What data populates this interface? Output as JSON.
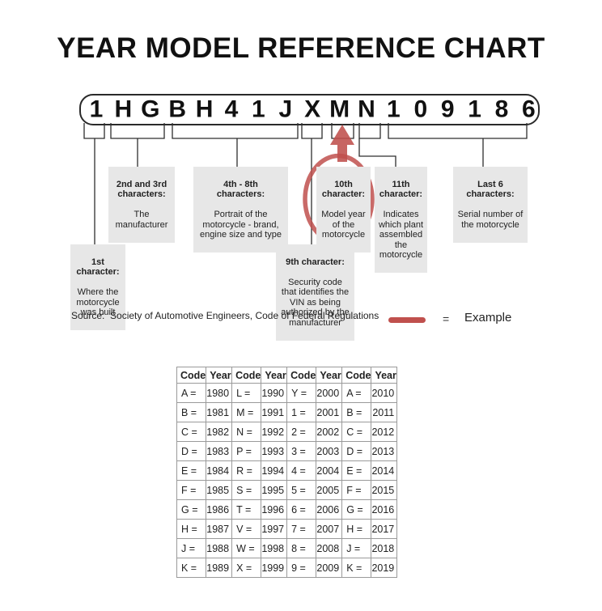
{
  "title": "YEAR MODEL REFERENCE CHART",
  "vin": {
    "chars": [
      "1",
      "H",
      "G",
      "B",
      "H",
      "4",
      "1",
      "J",
      "X",
      "M",
      "N",
      "1",
      "0",
      "9",
      "1",
      "8",
      "6"
    ]
  },
  "callouts": [
    {
      "id": "chars-2-3",
      "heading": "2nd and 3rd\ncharacters:",
      "body": "The\nmanufacturer"
    },
    {
      "id": "chars-4-8",
      "heading": "4th - 8th\ncharacters:",
      "body": "Portrait of the\nmotorcycle - brand,\nengine size and type"
    },
    {
      "id": "char-10",
      "heading": "10th\ncharacter:",
      "body": "Model year\nof the\nmotorcycle"
    },
    {
      "id": "char-11",
      "heading": "11th\ncharacter:",
      "body": "Indicates\nwhich plant\nassembled\nthe\nmotorcycle"
    },
    {
      "id": "last-6",
      "heading": "Last 6\ncharacters:",
      "body": "Serial number of\nthe motorcycle"
    },
    {
      "id": "char-1",
      "heading": "1st\ncharacter:",
      "body": "Where the\nmotorcycle\nwas built"
    },
    {
      "id": "char-9",
      "heading": "9th character:",
      "body": "Security code\nthat identifies the\nVIN as being\nauthorized by the\nmanufacturer"
    }
  ],
  "source_line": "Source:  Society of Automotive Engineers, Code of Federal Regulations",
  "legend": {
    "equals": "=",
    "label": "Example"
  },
  "colors": {
    "accent_red": "#c0504d",
    "callout_bg": "#e7e7e7"
  },
  "year_table": {
    "type": "table",
    "headers": [
      "Code",
      "Year",
      "Code",
      "Year",
      "Code",
      "Year",
      "Code",
      "Year"
    ],
    "rows": [
      [
        "A =",
        "1980",
        "L =",
        "1990",
        "Y =",
        "2000",
        "A =",
        "2010"
      ],
      [
        "B =",
        "1981",
        "M =",
        "1991",
        "1 =",
        "2001",
        "B =",
        "2011"
      ],
      [
        "C =",
        "1982",
        "N =",
        "1992",
        "2 =",
        "2002",
        "C =",
        "2012"
      ],
      [
        "D =",
        "1983",
        "P =",
        "1993",
        "3 =",
        "2003",
        "D =",
        "2013"
      ],
      [
        "E =",
        "1984",
        "R =",
        "1994",
        "4 =",
        "2004",
        "E =",
        "2014"
      ],
      [
        "F =",
        "1985",
        "S =",
        "1995",
        "5 =",
        "2005",
        "F =",
        "2015"
      ],
      [
        "G =",
        "1986",
        "T =",
        "1996",
        "6 =",
        "2006",
        "G =",
        "2016"
      ],
      [
        "H =",
        "1987",
        "V =",
        "1997",
        "7 =",
        "2007",
        "H =",
        "2017"
      ],
      [
        "J =",
        "1988",
        "W =",
        "1998",
        "8 =",
        "2008",
        "J =",
        "2018"
      ],
      [
        "K =",
        "1989",
        "X =",
        "1999",
        "9 =",
        "2009",
        "K =",
        "2019"
      ]
    ],
    "highlighted_cell": "M = 1991"
  }
}
